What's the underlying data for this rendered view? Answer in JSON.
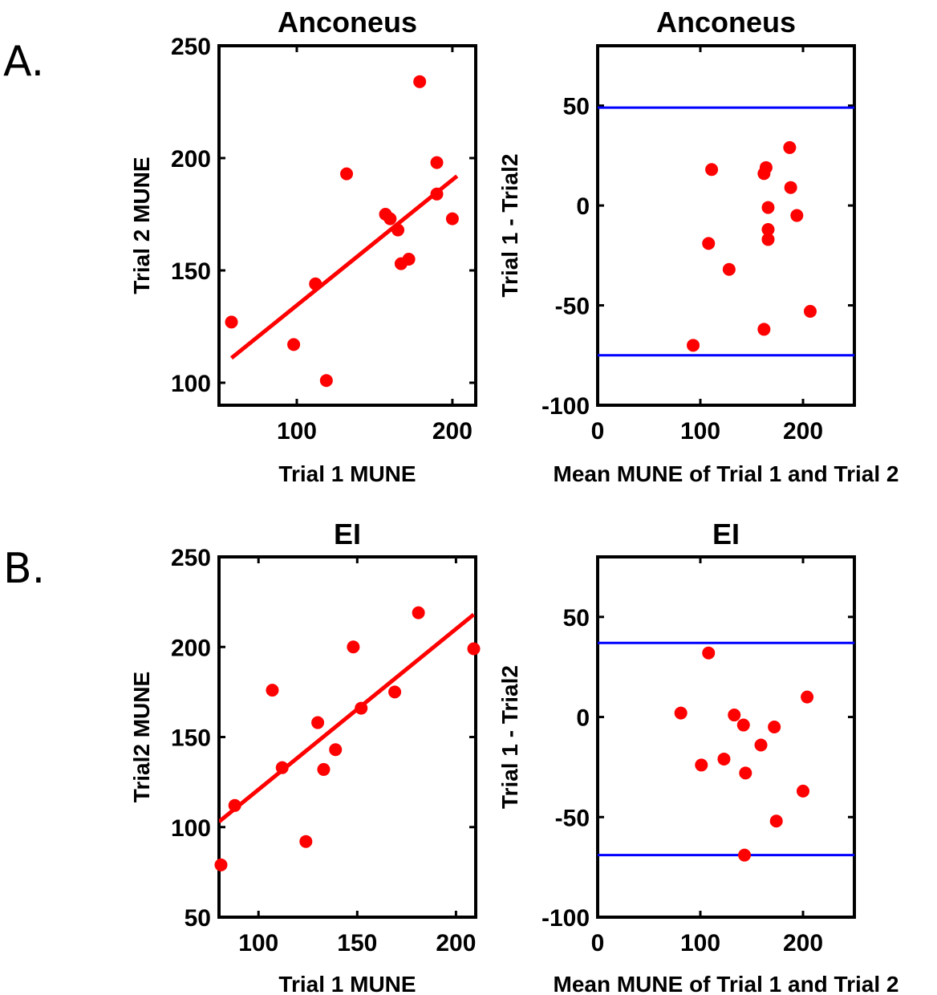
{
  "panel_labels": [
    "A.",
    "B."
  ],
  "colors": {
    "points": "#ff0000",
    "fit_line": "#ff0000",
    "limits": "#0000ff",
    "axes": "#000000"
  },
  "chart_data": [
    {
      "id": "A-scatter",
      "type": "scatter",
      "title": "Anconeus",
      "xlabel": "Trial 1 MUNE",
      "ylabel": "Trial 2 MUNE",
      "xlim": [
        50,
        215
      ],
      "ylim": [
        90,
        250
      ],
      "xticks": [
        100,
        200
      ],
      "yticks": [
        100,
        150,
        200,
        250
      ],
      "points": [
        {
          "x": 58,
          "y": 127
        },
        {
          "x": 98,
          "y": 117
        },
        {
          "x": 112,
          "y": 144
        },
        {
          "x": 119,
          "y": 101
        },
        {
          "x": 132,
          "y": 193
        },
        {
          "x": 157,
          "y": 175
        },
        {
          "x": 160,
          "y": 173
        },
        {
          "x": 165,
          "y": 168
        },
        {
          "x": 167,
          "y": 153
        },
        {
          "x": 172,
          "y": 155
        },
        {
          "x": 179,
          "y": 234
        },
        {
          "x": 190,
          "y": 198
        },
        {
          "x": 190,
          "y": 184
        },
        {
          "x": 200,
          "y": 173
        }
      ],
      "fit_line": {
        "x": [
          58,
          203
        ],
        "y": [
          111,
          192
        ]
      }
    },
    {
      "id": "A-blandaltman",
      "type": "scatter",
      "title": "Anconeus",
      "xlabel": "Mean MUNE of Trial 1 and Trial 2",
      "ylabel": "Trial 1 - Trial2",
      "xlim": [
        0,
        250
      ],
      "ylim": [
        -100,
        80
      ],
      "xticks": [
        0,
        100,
        200
      ],
      "yticks": [
        -100,
        -50,
        0,
        50
      ],
      "points": [
        {
          "x": 93,
          "y": -70
        },
        {
          "x": 108,
          "y": -19
        },
        {
          "x": 111,
          "y": 18
        },
        {
          "x": 128,
          "y": -32
        },
        {
          "x": 162,
          "y": 16
        },
        {
          "x": 162,
          "y": -62
        },
        {
          "x": 164,
          "y": 19
        },
        {
          "x": 166,
          "y": -1
        },
        {
          "x": 166,
          "y": -12
        },
        {
          "x": 166,
          "y": -17
        },
        {
          "x": 187,
          "y": 29
        },
        {
          "x": 188,
          "y": 9
        },
        {
          "x": 194,
          "y": -5
        },
        {
          "x": 207,
          "y": -53
        }
      ],
      "hlines": [
        49,
        -75
      ]
    },
    {
      "id": "B-scatter",
      "type": "scatter",
      "title": "EI",
      "xlabel": "Trial 1 MUNE",
      "ylabel": "Trial2 MUNE",
      "xlim": [
        80,
        210
      ],
      "ylim": [
        50,
        250
      ],
      "xticks": [
        100,
        150,
        200
      ],
      "yticks": [
        50,
        100,
        150,
        200,
        250
      ],
      "points": [
        {
          "x": 81,
          "y": 79
        },
        {
          "x": 88,
          "y": 112
        },
        {
          "x": 107,
          "y": 176
        },
        {
          "x": 112,
          "y": 133
        },
        {
          "x": 124,
          "y": 92
        },
        {
          "x": 130,
          "y": 158
        },
        {
          "x": 133,
          "y": 132
        },
        {
          "x": 139,
          "y": 143
        },
        {
          "x": 148,
          "y": 200
        },
        {
          "x": 152,
          "y": 166
        },
        {
          "x": 169,
          "y": 175
        },
        {
          "x": 181,
          "y": 219
        },
        {
          "x": 209,
          "y": 199
        }
      ],
      "fit_line": {
        "x": [
          80,
          209
        ],
        "y": [
          103,
          218
        ]
      }
    },
    {
      "id": "B-blandaltman",
      "type": "scatter",
      "title": "EI",
      "xlabel": "Mean MUNE of Trial 1 and Trial 2",
      "ylabel": "Trial 1 - Trial2",
      "xlim": [
        0,
        250
      ],
      "ylim": [
        -100,
        80
      ],
      "xticks": [
        0,
        100,
        200
      ],
      "yticks": [
        -100,
        -50,
        0,
        50
      ],
      "points": [
        {
          "x": 81,
          "y": 2
        },
        {
          "x": 101,
          "y": -24
        },
        {
          "x": 108,
          "y": 32
        },
        {
          "x": 123,
          "y": -21
        },
        {
          "x": 133,
          "y": 1
        },
        {
          "x": 142,
          "y": -4
        },
        {
          "x": 144,
          "y": -28
        },
        {
          "x": 143,
          "y": -69
        },
        {
          "x": 159,
          "y": -14
        },
        {
          "x": 172,
          "y": -5
        },
        {
          "x": 174,
          "y": -52
        },
        {
          "x": 200,
          "y": -37
        },
        {
          "x": 204,
          "y": 10
        }
      ],
      "hlines": [
        37,
        -69
      ]
    }
  ]
}
